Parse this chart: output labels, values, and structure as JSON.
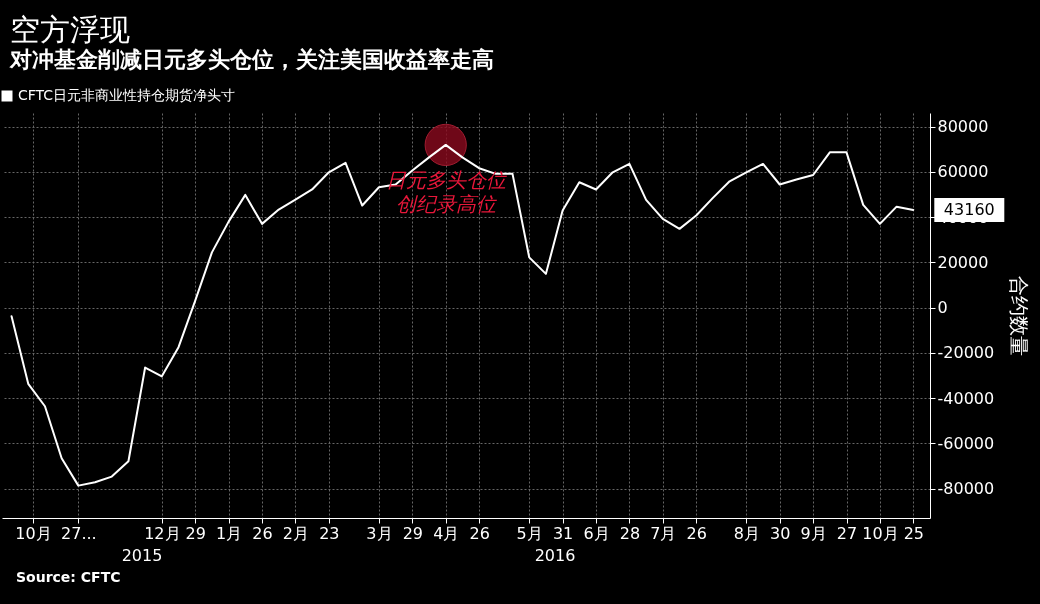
{
  "chart_data": {
    "type": "line",
    "title": "空方浮现",
    "subtitle": "对冲基金削减日元多头仓位，关注美国收益率走高",
    "ylabel": "合约数量",
    "x": [
      "2015-10-13",
      "2015-10-20",
      "2015-10-27",
      "2015-11-03",
      "2015-11-10",
      "2015-11-17",
      "2015-11-24",
      "2015-12-01",
      "2015-12-08",
      "2015-12-15",
      "2015-12-22",
      "2015-12-29",
      "2016-01-05",
      "2016-01-12",
      "2016-01-19",
      "2016-01-26",
      "2016-02-02",
      "2016-02-09",
      "2016-02-16",
      "2016-02-23",
      "2016-03-01",
      "2016-03-08",
      "2016-03-15",
      "2016-03-22",
      "2016-03-29",
      "2016-04-05",
      "2016-04-12",
      "2016-04-19",
      "2016-04-26",
      "2016-05-03",
      "2016-05-10",
      "2016-05-17",
      "2016-05-24",
      "2016-05-31",
      "2016-06-07",
      "2016-06-14",
      "2016-06-21",
      "2016-06-28",
      "2016-07-05",
      "2016-07-12",
      "2016-07-19",
      "2016-07-26",
      "2016-08-02",
      "2016-08-09",
      "2016-08-16",
      "2016-08-23",
      "2016-08-30",
      "2016-09-06",
      "2016-09-13",
      "2016-09-20",
      "2016-09-27",
      "2016-10-04",
      "2016-10-11",
      "2016-10-18",
      "2016-10-25"
    ],
    "series": [
      {
        "name": "CFTC日元非商业性持仓期货净头寸",
        "color": "#ffffff",
        "values": [
          -3800,
          -33700,
          -43600,
          -66600,
          -78700,
          -77200,
          -74700,
          -67900,
          -26500,
          -30400,
          -17500,
          3100,
          24400,
          38000,
          49800,
          37000,
          43300,
          47700,
          52200,
          59800,
          64000,
          45100,
          53200,
          54400,
          60600,
          66400,
          71900,
          66400,
          61600,
          59100,
          59100,
          22200,
          14900,
          42900,
          55400,
          52200,
          59800,
          63500,
          47600,
          39200,
          34800,
          40700,
          48500,
          55800,
          59800,
          63500,
          54400,
          56600,
          58600,
          68600,
          68600,
          45400,
          37000,
          44600,
          43160
        ],
        "value_labels": [
          null,
          null,
          null,
          null,
          null,
          null,
          null,
          null,
          null,
          null,
          null,
          null,
          null,
          null,
          null,
          null,
          null,
          null,
          null,
          null,
          null,
          null,
          null,
          null,
          null,
          null,
          null,
          null,
          null,
          null,
          null,
          null,
          null,
          null,
          null,
          null,
          null,
          null,
          null,
          null,
          null,
          null,
          null,
          null,
          null,
          null,
          null,
          null,
          null,
          null,
          null,
          null,
          null,
          null,
          "43160"
        ]
      }
    ],
    "xlim": [
      "2015-10-09",
      "2016-11-01"
    ],
    "xticks": [
      {
        "value": "2015-10-22",
        "label": "10月"
      },
      {
        "value": "2015-11-10",
        "label": "27..."
      },
      {
        "value": "2015-12-15",
        "label": "12月"
      },
      {
        "value": "2015-12-29",
        "label": "29"
      },
      {
        "value": "2016-01-12",
        "label": "1月"
      },
      {
        "value": "2016-01-26",
        "label": "26"
      },
      {
        "value": "2016-02-09",
        "label": "2月"
      },
      {
        "value": "2016-02-23",
        "label": "23"
      },
      {
        "value": "2016-03-15",
        "label": "3月"
      },
      {
        "value": "2016-03-29",
        "label": "29"
      },
      {
        "value": "2016-04-12",
        "label": "4月"
      },
      {
        "value": "2016-04-26",
        "label": "26"
      },
      {
        "value": "2016-05-17",
        "label": "5月"
      },
      {
        "value": "2016-05-31",
        "label": "31"
      },
      {
        "value": "2016-06-14",
        "label": "6月"
      },
      {
        "value": "2016-06-28",
        "label": "28"
      },
      {
        "value": "2016-07-12",
        "label": "7月"
      },
      {
        "value": "2016-07-26",
        "label": "26"
      },
      {
        "value": "2016-08-16",
        "label": "8月"
      },
      {
        "value": "2016-08-30",
        "label": "30"
      },
      {
        "value": "2016-09-13",
        "label": "9月"
      },
      {
        "value": "2016-09-27",
        "label": "27"
      },
      {
        "value": "2016-10-11",
        "label": "10月"
      },
      {
        "value": "2016-10-25",
        "label": "25"
      }
    ],
    "ylim": [
      -93000,
      86000
    ],
    "yticks": [
      -80000,
      -60000,
      -40000,
      -20000,
      0,
      20000,
      40000,
      60000,
      80000
    ],
    "grid": true,
    "legend": "top left",
    "marker": "none",
    "line_style": "solid",
    "annotations": [
      {
        "text": "日元多头仓位创纪录高位",
        "x": "2016-04-12",
        "y": 71900
      },
      "2015",
      "2016",
      "Source: CFTC"
    ]
  }
}
